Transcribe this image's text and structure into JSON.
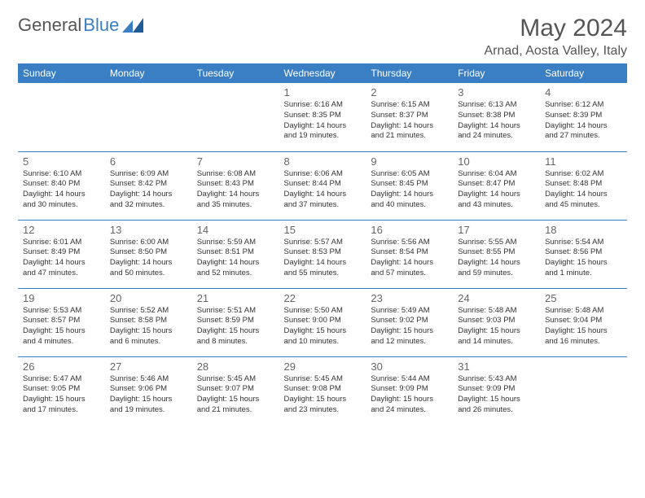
{
  "brand": {
    "part1": "General",
    "part2": "Blue"
  },
  "title": "May 2024",
  "location": "Arnad, Aosta Valley, Italy",
  "colors": {
    "header_bg": "#3a7fc4",
    "header_text": "#ffffff",
    "border": "#3a7fc4",
    "page_bg": "#ffffff",
    "text": "#333333",
    "title_text": "#555555"
  },
  "day_headers": [
    "Sunday",
    "Monday",
    "Tuesday",
    "Wednesday",
    "Thursday",
    "Friday",
    "Saturday"
  ],
  "weeks": [
    [
      null,
      null,
      null,
      {
        "n": "1",
        "sr": "6:16 AM",
        "ss": "8:35 PM",
        "dl": "14 hours and 19 minutes."
      },
      {
        "n": "2",
        "sr": "6:15 AM",
        "ss": "8:37 PM",
        "dl": "14 hours and 21 minutes."
      },
      {
        "n": "3",
        "sr": "6:13 AM",
        "ss": "8:38 PM",
        "dl": "14 hours and 24 minutes."
      },
      {
        "n": "4",
        "sr": "6:12 AM",
        "ss": "8:39 PM",
        "dl": "14 hours and 27 minutes."
      }
    ],
    [
      {
        "n": "5",
        "sr": "6:10 AM",
        "ss": "8:40 PM",
        "dl": "14 hours and 30 minutes."
      },
      {
        "n": "6",
        "sr": "6:09 AM",
        "ss": "8:42 PM",
        "dl": "14 hours and 32 minutes."
      },
      {
        "n": "7",
        "sr": "6:08 AM",
        "ss": "8:43 PM",
        "dl": "14 hours and 35 minutes."
      },
      {
        "n": "8",
        "sr": "6:06 AM",
        "ss": "8:44 PM",
        "dl": "14 hours and 37 minutes."
      },
      {
        "n": "9",
        "sr": "6:05 AM",
        "ss": "8:45 PM",
        "dl": "14 hours and 40 minutes."
      },
      {
        "n": "10",
        "sr": "6:04 AM",
        "ss": "8:47 PM",
        "dl": "14 hours and 43 minutes."
      },
      {
        "n": "11",
        "sr": "6:02 AM",
        "ss": "8:48 PM",
        "dl": "14 hours and 45 minutes."
      }
    ],
    [
      {
        "n": "12",
        "sr": "6:01 AM",
        "ss": "8:49 PM",
        "dl": "14 hours and 47 minutes."
      },
      {
        "n": "13",
        "sr": "6:00 AM",
        "ss": "8:50 PM",
        "dl": "14 hours and 50 minutes."
      },
      {
        "n": "14",
        "sr": "5:59 AM",
        "ss": "8:51 PM",
        "dl": "14 hours and 52 minutes."
      },
      {
        "n": "15",
        "sr": "5:57 AM",
        "ss": "8:53 PM",
        "dl": "14 hours and 55 minutes."
      },
      {
        "n": "16",
        "sr": "5:56 AM",
        "ss": "8:54 PM",
        "dl": "14 hours and 57 minutes."
      },
      {
        "n": "17",
        "sr": "5:55 AM",
        "ss": "8:55 PM",
        "dl": "14 hours and 59 minutes."
      },
      {
        "n": "18",
        "sr": "5:54 AM",
        "ss": "8:56 PM",
        "dl": "15 hours and 1 minute."
      }
    ],
    [
      {
        "n": "19",
        "sr": "5:53 AM",
        "ss": "8:57 PM",
        "dl": "15 hours and 4 minutes."
      },
      {
        "n": "20",
        "sr": "5:52 AM",
        "ss": "8:58 PM",
        "dl": "15 hours and 6 minutes."
      },
      {
        "n": "21",
        "sr": "5:51 AM",
        "ss": "8:59 PM",
        "dl": "15 hours and 8 minutes."
      },
      {
        "n": "22",
        "sr": "5:50 AM",
        "ss": "9:00 PM",
        "dl": "15 hours and 10 minutes."
      },
      {
        "n": "23",
        "sr": "5:49 AM",
        "ss": "9:02 PM",
        "dl": "15 hours and 12 minutes."
      },
      {
        "n": "24",
        "sr": "5:48 AM",
        "ss": "9:03 PM",
        "dl": "15 hours and 14 minutes."
      },
      {
        "n": "25",
        "sr": "5:48 AM",
        "ss": "9:04 PM",
        "dl": "15 hours and 16 minutes."
      }
    ],
    [
      {
        "n": "26",
        "sr": "5:47 AM",
        "ss": "9:05 PM",
        "dl": "15 hours and 17 minutes."
      },
      {
        "n": "27",
        "sr": "5:46 AM",
        "ss": "9:06 PM",
        "dl": "15 hours and 19 minutes."
      },
      {
        "n": "28",
        "sr": "5:45 AM",
        "ss": "9:07 PM",
        "dl": "15 hours and 21 minutes."
      },
      {
        "n": "29",
        "sr": "5:45 AM",
        "ss": "9:08 PM",
        "dl": "15 hours and 23 minutes."
      },
      {
        "n": "30",
        "sr": "5:44 AM",
        "ss": "9:09 PM",
        "dl": "15 hours and 24 minutes."
      },
      {
        "n": "31",
        "sr": "5:43 AM",
        "ss": "9:09 PM",
        "dl": "15 hours and 26 minutes."
      },
      null
    ]
  ],
  "labels": {
    "sunrise": "Sunrise: ",
    "sunset": "Sunset: ",
    "daylight": "Daylight: "
  }
}
